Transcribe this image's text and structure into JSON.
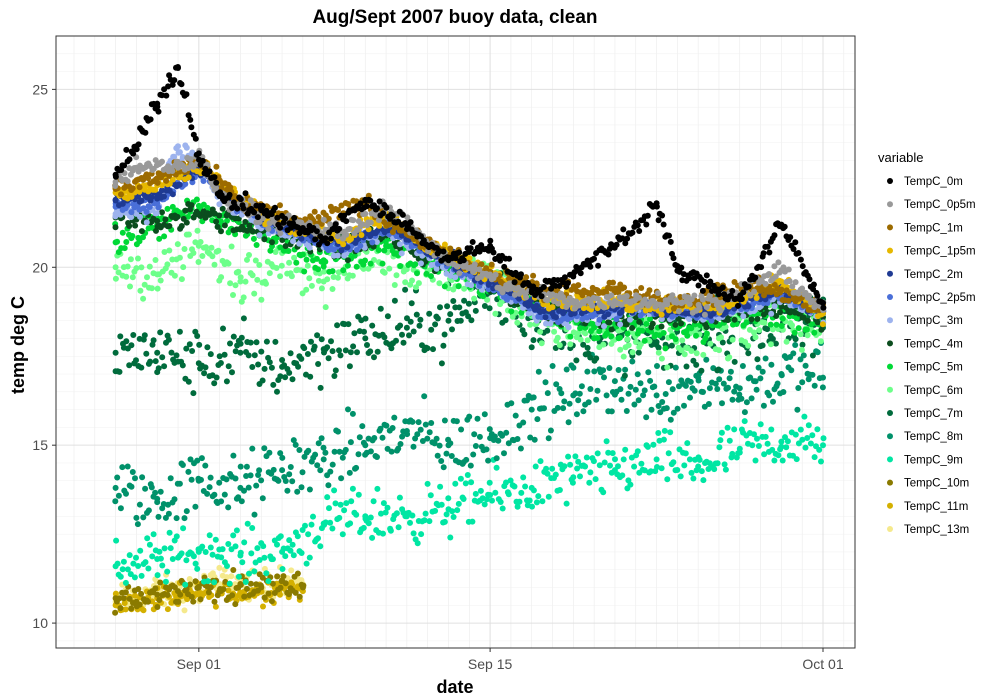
{
  "chart_data": {
    "type": "scatter",
    "title": "Aug/Sept 2007 buoy data, clean",
    "xlabel": "date",
    "ylabel": "temp deg C",
    "xlim": [
      "2007-08-26",
      "2007-10-01"
    ],
    "ylim": [
      9.3,
      26.5
    ],
    "x_ticks": [
      {
        "date": "2007-09-01",
        "label": "Sep 01"
      },
      {
        "date": "2007-09-15",
        "label": "Sep 15"
      },
      {
        "date": "2007-10-01",
        "label": "Oct 01"
      }
    ],
    "y_ticks": [
      10,
      15,
      20,
      25
    ],
    "grid": true,
    "legend": {
      "title": "variable",
      "placement": "right"
    },
    "series": [
      {
        "name": "TempC_0m",
        "color": "#000000",
        "points": [
          [
            "2007-08-28",
            22.6
          ],
          [
            "2007-08-29",
            23.4
          ],
          [
            "2007-08-30",
            24.6
          ],
          [
            "2007-08-31",
            25.6
          ],
          [
            "2007-09-01",
            23.2
          ],
          [
            "2007-09-02",
            22.0
          ],
          [
            "2007-09-04",
            21.6
          ],
          [
            "2007-09-07",
            20.8
          ],
          [
            "2007-09-09",
            21.9
          ],
          [
            "2007-09-11",
            21.2
          ],
          [
            "2007-09-13",
            20.2
          ],
          [
            "2007-09-15",
            20.6
          ],
          [
            "2007-09-17",
            19.3
          ],
          [
            "2007-09-19",
            19.8
          ],
          [
            "2007-09-21",
            20.6
          ],
          [
            "2007-09-23",
            21.8
          ],
          [
            "2007-09-24",
            19.9
          ],
          [
            "2007-09-27",
            19.1
          ],
          [
            "2007-09-29",
            21.2
          ],
          [
            "2007-10-01",
            19.0
          ]
        ]
      },
      {
        "name": "TempC_0p5m",
        "color": "#999999",
        "points": [
          [
            "2007-08-28",
            22.4
          ],
          [
            "2007-08-29",
            22.8
          ],
          [
            "2007-08-31",
            22.8
          ],
          [
            "2007-09-01",
            23.1
          ],
          [
            "2007-09-02",
            22.0
          ],
          [
            "2007-09-05",
            21.2
          ],
          [
            "2007-09-08",
            21.0
          ],
          [
            "2007-09-10",
            21.7
          ],
          [
            "2007-09-13",
            20.2
          ],
          [
            "2007-09-16",
            19.4
          ],
          [
            "2007-09-19",
            19.0
          ],
          [
            "2007-09-22",
            19.1
          ],
          [
            "2007-09-26",
            19.0
          ],
          [
            "2007-09-29",
            19.9
          ],
          [
            "2007-10-01",
            18.8
          ]
        ]
      },
      {
        "name": "TempC_1m",
        "color": "#9c6b00",
        "points": [
          [
            "2007-08-28",
            22.2
          ],
          [
            "2007-08-30",
            22.5
          ],
          [
            "2007-09-01",
            23.0
          ],
          [
            "2007-09-03",
            21.8
          ],
          [
            "2007-09-06",
            21.2
          ],
          [
            "2007-09-09",
            21.8
          ],
          [
            "2007-09-12",
            20.6
          ],
          [
            "2007-09-15",
            19.8
          ],
          [
            "2007-09-18",
            19.3
          ],
          [
            "2007-09-21",
            19.4
          ],
          [
            "2007-09-24",
            19.0
          ],
          [
            "2007-09-28",
            19.5
          ],
          [
            "2007-10-01",
            18.8
          ]
        ]
      },
      {
        "name": "TempC_1p5m",
        "color": "#e6b800",
        "points": [
          [
            "2007-08-28",
            22.1
          ],
          [
            "2007-08-30",
            22.3
          ],
          [
            "2007-09-01",
            22.9
          ],
          [
            "2007-09-04",
            21.5
          ],
          [
            "2007-09-08",
            20.8
          ],
          [
            "2007-09-10",
            21.4
          ],
          [
            "2007-09-14",
            20.0
          ],
          [
            "2007-09-18",
            19.1
          ],
          [
            "2007-09-22",
            19.0
          ],
          [
            "2007-09-26",
            18.9
          ],
          [
            "2007-09-29",
            19.6
          ],
          [
            "2007-10-01",
            18.7
          ]
        ]
      },
      {
        "name": "TempC_2m",
        "color": "#1f3a93",
        "points": [
          [
            "2007-08-28",
            21.9
          ],
          [
            "2007-08-30",
            22.0
          ],
          [
            "2007-09-01",
            22.8
          ],
          [
            "2007-09-04",
            21.4
          ],
          [
            "2007-09-08",
            20.6
          ],
          [
            "2007-09-10",
            21.2
          ],
          [
            "2007-09-14",
            19.9
          ],
          [
            "2007-09-18",
            18.7
          ],
          [
            "2007-09-22",
            18.9
          ],
          [
            "2007-09-26",
            18.8
          ],
          [
            "2007-09-29",
            19.4
          ],
          [
            "2007-10-01",
            18.7
          ]
        ]
      },
      {
        "name": "TempC_2p5m",
        "color": "#4a6fd8",
        "points": [
          [
            "2007-08-28",
            21.7
          ],
          [
            "2007-08-30",
            21.8
          ],
          [
            "2007-09-01",
            22.7
          ],
          [
            "2007-09-04",
            21.3
          ],
          [
            "2007-09-08",
            20.5
          ],
          [
            "2007-09-10",
            21.1
          ],
          [
            "2007-09-14",
            19.8
          ],
          [
            "2007-09-18",
            18.6
          ],
          [
            "2007-09-22",
            18.8
          ],
          [
            "2007-09-26",
            18.7
          ],
          [
            "2007-09-29",
            19.3
          ],
          [
            "2007-10-01",
            18.7
          ]
        ]
      },
      {
        "name": "TempC_3m",
        "color": "#9db3ee",
        "points": [
          [
            "2007-08-28",
            21.5
          ],
          [
            "2007-08-30",
            21.7
          ],
          [
            "2007-08-31",
            23.4
          ],
          [
            "2007-09-01",
            23.0
          ],
          [
            "2007-09-02",
            22.0
          ],
          [
            "2007-09-04",
            21.2
          ],
          [
            "2007-09-08",
            20.5
          ],
          [
            "2007-09-10",
            21.0
          ],
          [
            "2007-09-14",
            19.7
          ],
          [
            "2007-09-18",
            18.6
          ],
          [
            "2007-09-22",
            18.8
          ],
          [
            "2007-09-26",
            18.7
          ],
          [
            "2007-09-29",
            19.2
          ],
          [
            "2007-10-01",
            18.7
          ]
        ]
      },
      {
        "name": "TempC_4m",
        "color": "#0b4d1e",
        "points": [
          [
            "2007-08-28",
            21.4
          ],
          [
            "2007-08-30",
            21.3
          ],
          [
            "2007-09-01",
            21.5
          ],
          [
            "2007-09-04",
            21.0
          ],
          [
            "2007-09-08",
            20.6
          ],
          [
            "2007-09-10",
            20.9
          ],
          [
            "2007-09-14",
            19.8
          ],
          [
            "2007-09-18",
            18.7
          ],
          [
            "2007-09-22",
            18.6
          ],
          [
            "2007-09-26",
            18.6
          ],
          [
            "2007-09-29",
            18.9
          ],
          [
            "2007-10-01",
            18.6
          ]
        ]
      },
      {
        "name": "TempC_5m",
        "color": "#00d936",
        "points": [
          [
            "2007-08-28",
            20.7
          ],
          [
            "2007-08-30",
            21.2
          ],
          [
            "2007-09-01",
            21.6
          ],
          [
            "2007-09-04",
            20.9
          ],
          [
            "2007-09-07",
            20.2
          ],
          [
            "2007-09-10",
            20.6
          ],
          [
            "2007-09-13",
            19.9
          ],
          [
            "2007-09-17",
            18.9
          ],
          [
            "2007-09-20",
            18.3
          ],
          [
            "2007-09-24",
            18.3
          ],
          [
            "2007-09-28",
            18.7
          ],
          [
            "2007-10-01",
            18.5
          ]
        ]
      },
      {
        "name": "TempC_6m",
        "color": "#6dff8a",
        "points": [
          [
            "2007-08-28",
            20.0
          ],
          [
            "2007-08-30",
            19.8
          ],
          [
            "2007-09-01",
            20.6
          ],
          [
            "2007-09-03",
            19.6
          ],
          [
            "2007-09-05",
            20.4
          ],
          [
            "2007-09-07",
            19.6
          ],
          [
            "2007-09-09",
            20.5
          ],
          [
            "2007-09-12",
            19.9
          ],
          [
            "2007-09-15",
            19.6
          ],
          [
            "2007-09-18",
            18.4
          ],
          [
            "2007-09-22",
            17.9
          ],
          [
            "2007-09-26",
            18.0
          ],
          [
            "2007-09-29",
            18.6
          ],
          [
            "2007-10-01",
            18.4
          ]
        ]
      },
      {
        "name": "TempC_7m",
        "color": "#006b3c",
        "points": [
          [
            "2007-08-28",
            17.6
          ],
          [
            "2007-08-30",
            17.6
          ],
          [
            "2007-09-01",
            17.3
          ],
          [
            "2007-09-03",
            17.6
          ],
          [
            "2007-09-05",
            17.2
          ],
          [
            "2007-09-07",
            17.7
          ],
          [
            "2007-09-09",
            18.0
          ],
          [
            "2007-09-11",
            18.3
          ],
          [
            "2007-09-13",
            18.5
          ],
          [
            "2007-09-15",
            19.3
          ],
          [
            "2007-09-17",
            18.6
          ],
          [
            "2007-09-20",
            18.0
          ],
          [
            "2007-09-23",
            17.9
          ],
          [
            "2007-09-26",
            18.1
          ],
          [
            "2007-09-29",
            18.3
          ],
          [
            "2007-10-01",
            18.3
          ]
        ]
      },
      {
        "name": "TempC_8m",
        "color": "#00916a",
        "points": [
          [
            "2007-08-28",
            13.8
          ],
          [
            "2007-08-30",
            13.4
          ],
          [
            "2007-09-01",
            14.0
          ],
          [
            "2007-09-03",
            13.8
          ],
          [
            "2007-09-05",
            14.3
          ],
          [
            "2007-09-07",
            14.6
          ],
          [
            "2007-09-09",
            15.0
          ],
          [
            "2007-09-11",
            15.4
          ],
          [
            "2007-09-13",
            15.0
          ],
          [
            "2007-09-15",
            15.2
          ],
          [
            "2007-09-17",
            16.0
          ],
          [
            "2007-09-19",
            16.4
          ],
          [
            "2007-09-21",
            16.8
          ],
          [
            "2007-09-23",
            16.4
          ],
          [
            "2007-09-25",
            16.9
          ],
          [
            "2007-09-27",
            16.6
          ],
          [
            "2007-09-29",
            17.0
          ],
          [
            "2007-10-01",
            16.9
          ]
        ]
      },
      {
        "name": "TempC_9m",
        "color": "#00e6a3",
        "points": [
          [
            "2007-08-28",
            11.6
          ],
          [
            "2007-08-30",
            11.8
          ],
          [
            "2007-09-01",
            12.0
          ],
          [
            "2007-09-03",
            11.9
          ],
          [
            "2007-09-05",
            12.0
          ],
          [
            "2007-09-07",
            12.8
          ],
          [
            "2007-09-09",
            13.0
          ],
          [
            "2007-09-11",
            13.0
          ],
          [
            "2007-09-13",
            13.2
          ],
          [
            "2007-09-15",
            13.6
          ],
          [
            "2007-09-17",
            13.8
          ],
          [
            "2007-09-19",
            14.1
          ],
          [
            "2007-09-21",
            14.3
          ],
          [
            "2007-09-23",
            14.6
          ],
          [
            "2007-09-25",
            14.4
          ],
          [
            "2007-09-27",
            14.9
          ],
          [
            "2007-09-29",
            15.1
          ],
          [
            "2007-10-01",
            15.0
          ]
        ]
      },
      {
        "name": "TempC_10m",
        "color": "#8a7a00",
        "points": [
          [
            "2007-08-28",
            10.7
          ],
          [
            "2007-08-29",
            10.6
          ],
          [
            "2007-08-30",
            10.8
          ],
          [
            "2007-08-31",
            10.9
          ],
          [
            "2007-09-01",
            11.0
          ],
          [
            "2007-09-02",
            10.9
          ],
          [
            "2007-09-03",
            11.1
          ],
          [
            "2007-09-04",
            11.0
          ],
          [
            "2007-09-05",
            11.2
          ],
          [
            "2007-09-06",
            11.0
          ]
        ]
      },
      {
        "name": "TempC_11m",
        "color": "#d4b000",
        "points": [
          [
            "2007-08-28",
            10.5
          ],
          [
            "2007-08-29",
            10.6
          ],
          [
            "2007-08-30",
            10.7
          ],
          [
            "2007-08-31",
            10.7
          ],
          [
            "2007-09-01",
            10.8
          ],
          [
            "2007-09-02",
            10.9
          ],
          [
            "2007-09-03",
            10.8
          ],
          [
            "2007-09-04",
            10.9
          ],
          [
            "2007-09-05",
            11.0
          ],
          [
            "2007-09-06",
            10.9
          ]
        ]
      },
      {
        "name": "TempC_13m",
        "color": "#f5e98c",
        "points": [
          [
            "2007-08-28",
            10.6
          ],
          [
            "2007-08-29",
            10.7
          ],
          [
            "2007-08-30",
            10.9
          ],
          [
            "2007-08-31",
            10.8
          ],
          [
            "2007-09-01",
            11.0
          ],
          [
            "2007-09-02",
            11.1
          ],
          [
            "2007-09-03",
            11.2
          ],
          [
            "2007-09-04",
            11.0
          ],
          [
            "2007-09-05",
            11.3
          ],
          [
            "2007-09-06",
            11.1
          ]
        ]
      }
    ]
  }
}
